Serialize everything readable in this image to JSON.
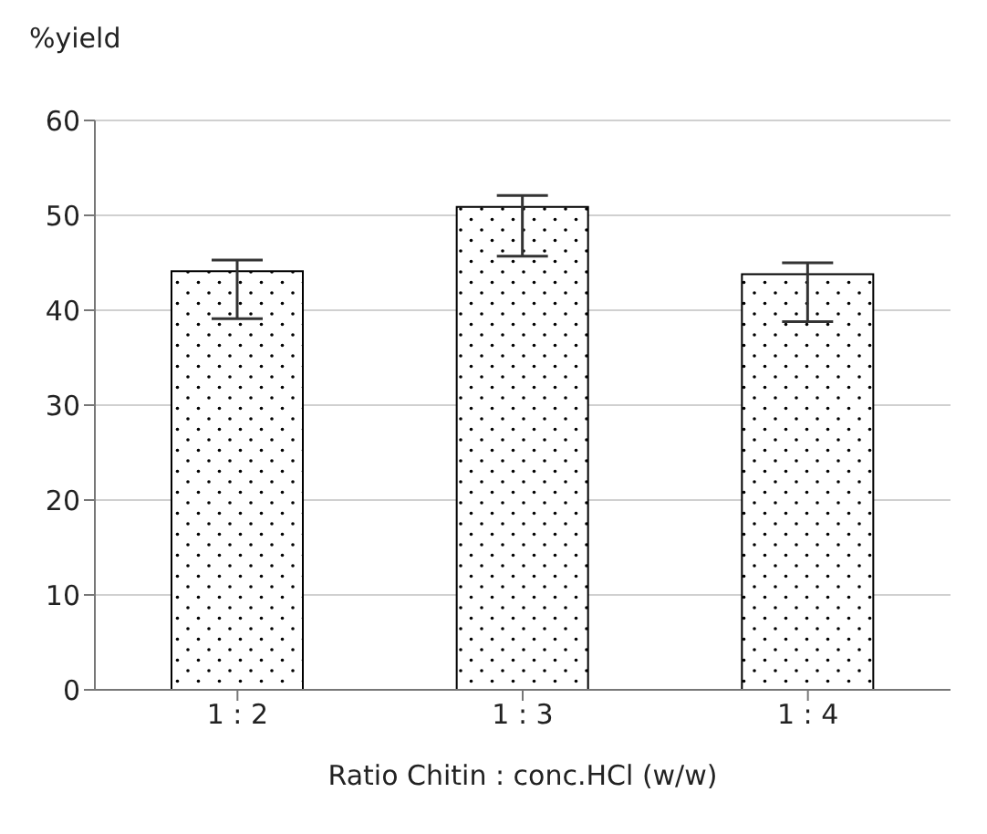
{
  "chart_data": {
    "type": "bar",
    "ylabel": "%yield",
    "xlabel": "Ratio Chitin : conc.HCl (w/w)",
    "categories": [
      "1 : 2",
      "1 : 3",
      "1 : 4"
    ],
    "series": [
      {
        "color": "#000000",
        "values": [
          44.1,
          50.9,
          43.8
        ],
        "errors": [
          [
            39.1,
            45.3
          ],
          [
            45.7,
            52.1
          ],
          [
            38.8,
            45.0
          ]
        ]
      }
    ],
    "ylim": [
      0,
      60
    ],
    "yticks": [
      0,
      10,
      20,
      30,
      40,
      50,
      60
    ],
    "grid": "y"
  }
}
